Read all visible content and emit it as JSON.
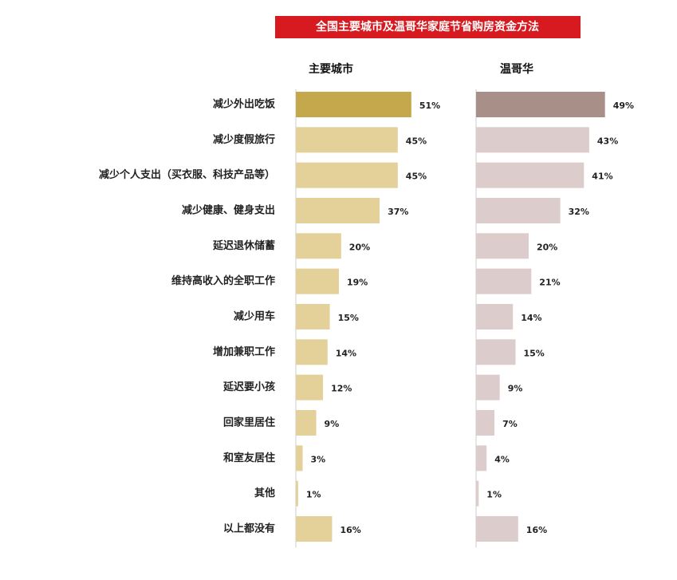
{
  "title": "全国主要城市及温哥华家庭节省购房资金方法",
  "chart_data": [
    {
      "type": "barh",
      "subtitle": "主要城市",
      "categories": [
        "减少外出吃饭",
        "减少度假旅行",
        "减少个人支出（买衣服、科技产品等）",
        "减少健康、健身支出",
        "延迟退休储蓄",
        "维持高收入的全职工作",
        "减少用车",
        "增加兼职工作",
        "延迟要小孩",
        "回家里居住",
        "和室友居住",
        "其他",
        "以上都没有"
      ],
      "values": [
        51,
        45,
        45,
        37,
        20,
        19,
        15,
        14,
        12,
        9,
        3,
        1,
        16
      ],
      "value_labels": [
        "51%",
        "45%",
        "45%",
        "37%",
        "20%",
        "19%",
        "15%",
        "14%",
        "12%",
        "9%",
        "3%",
        "1%",
        "16%"
      ],
      "colors": [
        "#c4a84b",
        "#e3d199",
        "#e3d199",
        "#e3d199",
        "#e3d199",
        "#e3d199",
        "#e3d199",
        "#e3d199",
        "#e3d199",
        "#e3d199",
        "#e3d199",
        "#e3d199",
        "#e3d199"
      ]
    },
    {
      "type": "barh",
      "subtitle": "温哥华",
      "values": [
        49,
        43,
        41,
        32,
        20,
        21,
        14,
        15,
        9,
        7,
        4,
        1,
        16
      ],
      "value_labels": [
        "49%",
        "43%",
        "41%",
        "32%",
        "20%",
        "21%",
        "14%",
        "15%",
        "9%",
        "7%",
        "4%",
        "1%",
        "16%"
      ],
      "colors": [
        "#a89089",
        "#ddcccc",
        "#ddcccc",
        "#ddcccc",
        "#ddcccc",
        "#ddcccc",
        "#ddcccc",
        "#ddcccc",
        "#ddcccc",
        "#ddcccc",
        "#ddcccc",
        "#ddcccc",
        "#ddcccc"
      ]
    }
  ]
}
